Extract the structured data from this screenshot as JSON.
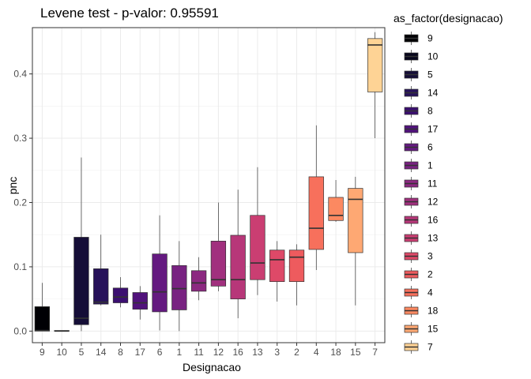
{
  "chart_data": {
    "type": "boxplot",
    "title": "Levene test - p-valor:  0.95591",
    "xlabel": "Designacao",
    "ylabel": "pnc",
    "ylim": [
      -0.018,
      0.472
    ],
    "yticks": [
      0.0,
      0.1,
      0.2,
      0.3,
      0.4
    ],
    "ytick_labels": [
      "0.0",
      "0.1",
      "0.2",
      "0.3",
      "0.4"
    ],
    "grid": true,
    "legend": {
      "title": "as_factor(designacao)",
      "position": "right",
      "labels": [
        "9",
        "10",
        "5",
        "14",
        "8",
        "17",
        "6",
        "1",
        "11",
        "12",
        "16",
        "13",
        "3",
        "2",
        "4",
        "18",
        "15",
        "7"
      ]
    },
    "categories": [
      "9",
      "10",
      "5",
      "14",
      "8",
      "17",
      "6",
      "1",
      "11",
      "12",
      "16",
      "13",
      "3",
      "2",
      "4",
      "18",
      "15",
      "7"
    ],
    "boxes": [
      {
        "min": 0.0,
        "q1": 0.0,
        "median": 0.001,
        "q3": 0.038,
        "max": 0.075
      },
      {
        "min": 0.0,
        "q1": 0.0,
        "median": 0.0,
        "q3": 0.001,
        "max": 0.001
      },
      {
        "min": 0.0,
        "q1": 0.01,
        "median": 0.02,
        "q3": 0.146,
        "max": 0.27
      },
      {
        "min": 0.04,
        "q1": 0.042,
        "median": 0.045,
        "q3": 0.097,
        "max": 0.15
      },
      {
        "min": 0.037,
        "q1": 0.044,
        "median": 0.053,
        "q3": 0.067,
        "max": 0.084
      },
      {
        "min": 0.018,
        "q1": 0.034,
        "median": 0.044,
        "q3": 0.06,
        "max": 0.07
      },
      {
        "min": 0.001,
        "q1": 0.03,
        "median": 0.061,
        "q3": 0.12,
        "max": 0.18
      },
      {
        "min": 0.0,
        "q1": 0.033,
        "median": 0.066,
        "q3": 0.102,
        "max": 0.14
      },
      {
        "min": 0.048,
        "q1": 0.062,
        "median": 0.075,
        "q3": 0.094,
        "max": 0.115
      },
      {
        "min": 0.062,
        "q1": 0.07,
        "median": 0.08,
        "q3": 0.14,
        "max": 0.2
      },
      {
        "min": 0.02,
        "q1": 0.05,
        "median": 0.08,
        "q3": 0.149,
        "max": 0.22
      },
      {
        "min": 0.056,
        "q1": 0.08,
        "median": 0.106,
        "q3": 0.18,
        "max": 0.255
      },
      {
        "min": 0.046,
        "q1": 0.077,
        "median": 0.111,
        "q3": 0.126,
        "max": 0.14
      },
      {
        "min": 0.04,
        "q1": 0.077,
        "median": 0.115,
        "q3": 0.126,
        "max": 0.135
      },
      {
        "min": 0.095,
        "q1": 0.127,
        "median": 0.16,
        "q3": 0.24,
        "max": 0.32
      },
      {
        "min": 0.17,
        "q1": 0.172,
        "median": 0.18,
        "q3": 0.208,
        "max": 0.235
      },
      {
        "min": 0.04,
        "q1": 0.122,
        "median": 0.205,
        "q3": 0.222,
        "max": 0.24
      },
      {
        "min": 0.3,
        "q1": 0.372,
        "median": 0.445,
        "q3": 0.455,
        "max": 0.465
      }
    ],
    "colors": [
      "#000004",
      "#07061C",
      "#150E37",
      "#27125A",
      "#3B0F70",
      "#51127C",
      "#641A80",
      "#782281",
      "#8C2981",
      "#A1307E",
      "#B73779",
      "#CA3E72",
      "#DE4968",
      "#EE5B5E",
      "#F7705C",
      "#FC8961",
      "#FEA873",
      "#FED395",
      "#FCFDBF"
    ]
  }
}
